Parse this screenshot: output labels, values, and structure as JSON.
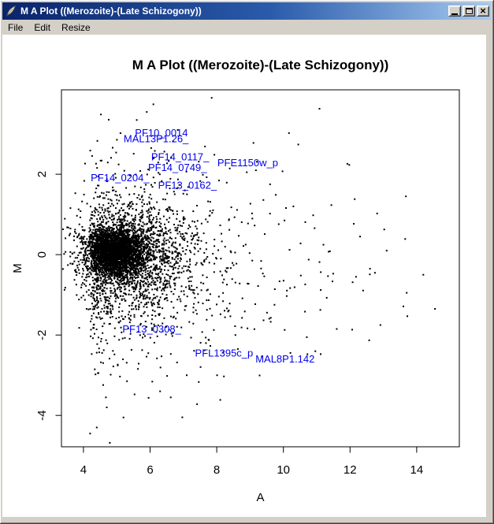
{
  "window": {
    "title": "M A Plot ((Merozoite)-(Late Schizogony))",
    "icon": "r-feather-icon",
    "menu": [
      "File",
      "Edit",
      "Resize"
    ],
    "buttons": {
      "minimize": "minimize",
      "maximize": "maximize",
      "close": "close"
    }
  },
  "chart_data": {
    "type": "scatter",
    "title": "M A Plot ((Merozoite)-(Late Schizogony))",
    "xlabel": "A",
    "ylabel": "M",
    "xlim": [
      3.34,
      15.28
    ],
    "ylim": [
      -4.78,
      4.1
    ],
    "xticks": [
      4,
      6,
      8,
      10,
      12,
      14
    ],
    "yticks": [
      -4,
      -2,
      0,
      2
    ],
    "grid": false,
    "legend": false,
    "point_color": "#000000",
    "label_color": "#0000ee",
    "description": "MA plot of expression data, (Merozoite)-(Late Schizogony); dense cluster near A=5, M=0 thinning toward high A; labeled outlier genes in blue",
    "labeled_genes": [
      {
        "text": "PF10_0014",
        "a": 6.34,
        "m": 3.02
      },
      {
        "text": "MAL13P1.26_",
        "a": 6.18,
        "m": 2.87
      },
      {
        "text": "PF14_0117_",
        "a": 6.9,
        "m": 2.42
      },
      {
        "text": "PF14_0749_",
        "a": 6.82,
        "m": 2.16
      },
      {
        "text": "PFE1150w_p",
        "a": 8.93,
        "m": 2.28
      },
      {
        "text": "PF14_0204_",
        "a": 5.1,
        "m": 1.9
      },
      {
        "text": "PF13_0162_",
        "a": 7.12,
        "m": 1.72
      },
      {
        "text": "PF13_0308_",
        "a": 6.05,
        "m": -1.86
      },
      {
        "text": "PFL1395c_p",
        "a": 8.22,
        "m": -2.46
      },
      {
        "text": "MAL8P1.142",
        "a": 10.05,
        "m": -2.6
      }
    ],
    "outlier_points": [
      [
        6.1,
        3.74
      ],
      [
        7.85,
        3.9
      ],
      [
        5.6,
        3.35
      ],
      [
        8.9,
        2.05
      ],
      [
        9.6,
        1.75
      ],
      [
        10.3,
        1.2
      ],
      [
        4.4,
        -4.3
      ],
      [
        5.2,
        -4.05
      ],
      [
        4.7,
        -3.8
      ],
      [
        6.3,
        -3.4
      ],
      [
        7.1,
        -3.0
      ],
      [
        12.6,
        -0.35
      ],
      [
        13.7,
        -0.95
      ],
      [
        14.55,
        -1.35
      ],
      [
        12.3,
        0.45
      ],
      [
        11.6,
        -1.85
      ],
      [
        13.1,
        0.1
      ],
      [
        14.2,
        -0.5
      ],
      [
        4.2,
        -4.45
      ],
      [
        5.9,
        3.55
      ]
    ],
    "point_cloud": {
      "seed": 1337,
      "marker_px": 2,
      "components": [
        {
          "n": 2600,
          "a_mean": 4.95,
          "a_sd": 0.42,
          "m_mean": 0.08,
          "m_sd": 0.28
        },
        {
          "n": 1500,
          "a_mean": 5.35,
          "a_sd": 0.85,
          "m_mean": 0.0,
          "m_sd": 0.62
        },
        {
          "n": 900,
          "a_exp_min": 4.2,
          "a_exp_mean": 1.5,
          "m_mean": -0.25,
          "m_sd": 1.05
        },
        {
          "n": 330,
          "a_exp_min": 4.4,
          "a_exp_mean": 2.6,
          "m_mean": -0.3,
          "m_sd": 1.5
        }
      ]
    }
  }
}
